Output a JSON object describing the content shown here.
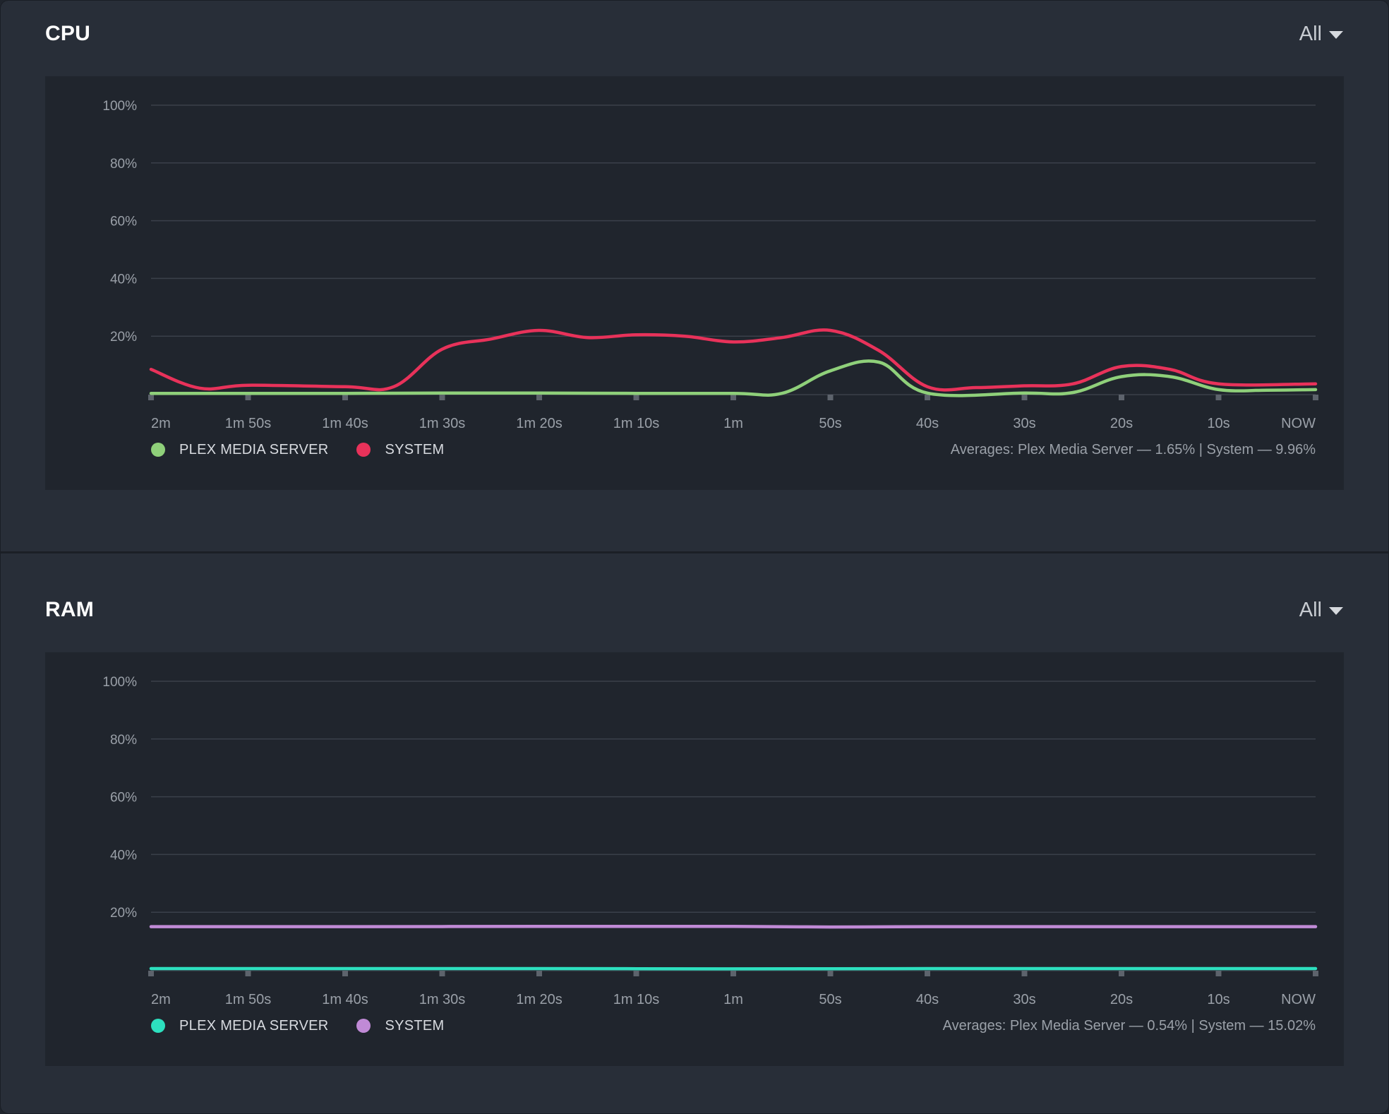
{
  "chart_data": [
    {
      "type": "line",
      "title": "CPU",
      "range_selector": "All",
      "x": [
        "2m",
        "1m 50s",
        "1m 40s",
        "1m 30s",
        "1m 20s",
        "1m 10s",
        "1m",
        "50s",
        "40s",
        "30s",
        "20s",
        "10s",
        "NOW"
      ],
      "y_ticks": [
        "100%",
        "80%",
        "60%",
        "40%",
        "20%"
      ],
      "ylim": [
        0,
        100
      ],
      "grid": true,
      "legend_position": "bottom-left",
      "series": [
        {
          "name": "PLEX MEDIA SERVER",
          "color": "#8fd07a",
          "points": [
            [
              0,
              0.2
            ],
            [
              10,
              0.2
            ],
            [
              20,
              0.2
            ],
            [
              30,
              0.3
            ],
            [
              40,
              0.3
            ],
            [
              50,
              0.2
            ],
            [
              60,
              0.2
            ],
            [
              65,
              0.2
            ],
            [
              70,
              8
            ],
            [
              75,
              11
            ],
            [
              80,
              0.3
            ],
            [
              90,
              0.3
            ],
            [
              95,
              0.5
            ],
            [
              100,
              6
            ],
            [
              105,
              6
            ],
            [
              110,
              1.5
            ],
            [
              115,
              1.3
            ],
            [
              120,
              1.5
            ]
          ]
        },
        {
          "name": "SYSTEM",
          "color": "#e8325a",
          "points": [
            [
              0,
              8.5
            ],
            [
              5,
              2
            ],
            [
              10,
              3
            ],
            [
              20,
              2.5
            ],
            [
              25,
              2.5
            ],
            [
              30,
              15.5
            ],
            [
              35,
              19
            ],
            [
              40,
              22
            ],
            [
              45,
              19.5
            ],
            [
              50,
              20.5
            ],
            [
              55,
              20
            ],
            [
              60,
              18
            ],
            [
              65,
              19.5
            ],
            [
              70,
              22
            ],
            [
              75,
              15
            ],
            [
              80,
              2.5
            ],
            [
              85,
              2.2
            ],
            [
              90,
              2.8
            ],
            [
              95,
              3.5
            ],
            [
              100,
              9.5
            ],
            [
              105,
              8.5
            ],
            [
              110,
              3.5
            ],
            [
              120,
              3.5
            ]
          ]
        }
      ],
      "averages": "Averages: Plex Media Server — 1.65% | System — 9.96%"
    },
    {
      "type": "line",
      "title": "RAM",
      "range_selector": "All",
      "x": [
        "2m",
        "1m 50s",
        "1m 40s",
        "1m 30s",
        "1m 20s",
        "1m 10s",
        "1m",
        "50s",
        "40s",
        "30s",
        "20s",
        "10s",
        "NOW"
      ],
      "y_ticks": [
        "100%",
        "80%",
        "60%",
        "40%",
        "20%"
      ],
      "ylim": [
        0,
        100
      ],
      "grid": true,
      "legend_position": "bottom-left",
      "series": [
        {
          "name": "PLEX MEDIA SERVER",
          "color": "#2de0bf",
          "points": [
            [
              0,
              0.5
            ],
            [
              20,
              0.5
            ],
            [
              40,
              0.5
            ],
            [
              60,
              0.4
            ],
            [
              80,
              0.5
            ],
            [
              100,
              0.5
            ],
            [
              120,
              0.5
            ]
          ]
        },
        {
          "name": "SYSTEM",
          "color": "#c08ad6",
          "points": [
            [
              0,
              15
            ],
            [
              20,
              15
            ],
            [
              40,
              15.1
            ],
            [
              60,
              15.1
            ],
            [
              70,
              14.9
            ],
            [
              80,
              15
            ],
            [
              100,
              15
            ],
            [
              120,
              15
            ]
          ]
        }
      ],
      "averages": "Averages: Plex Media Server — 0.54% | System — 15.02%"
    }
  ]
}
